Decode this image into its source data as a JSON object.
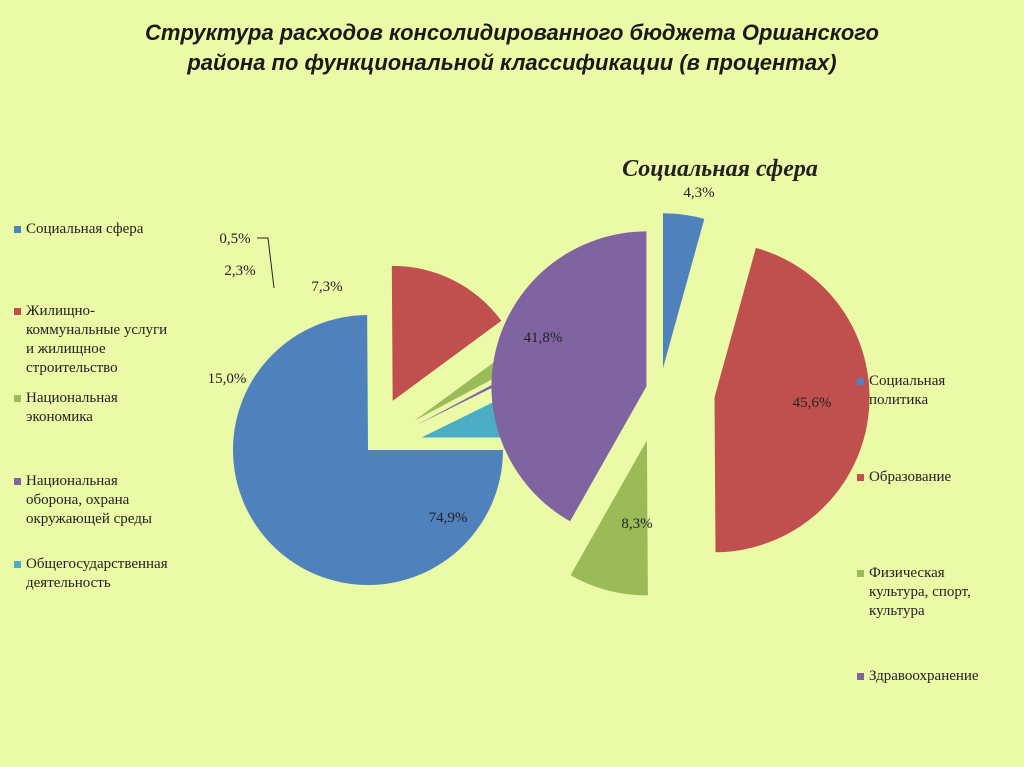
{
  "title": {
    "line1": "Структура расходов консолидированного бюджета  Оршанского",
    "line2": "района  по функциональной классификации (в процентах)"
  },
  "chart_data": [
    {
      "type": "pie",
      "title": "",
      "labels": [
        "Социальная сфера",
        "Жилищно-коммунальные услуги и жилищное строительство",
        "Национальная экономика",
        "Национальная оборона, охрана окружающей среды",
        "Общегосударственная деятельность"
      ],
      "values": [
        74.9,
        15.0,
        2.3,
        0.5,
        7.3
      ],
      "value_labels": [
        "74,9%",
        "15,0%",
        "2,3%",
        "0,5%",
        "7,3%"
      ],
      "colors": [
        "#4F81BD",
        "#C0504D",
        "#9BBB59",
        "#8064A2",
        "#4BACC6"
      ],
      "legend_position": "left"
    },
    {
      "type": "pie",
      "title": "Социальная сфера",
      "labels": [
        "Социальная политика",
        "Образование",
        "Физическая культура, спорт, культура",
        "Здравоохранение"
      ],
      "values": [
        4.3,
        45.6,
        8.3,
        41.8
      ],
      "value_labels": [
        "4,3%",
        "45,6%",
        "8,3%",
        "41,8%"
      ],
      "colors": [
        "#4F81BD",
        "#C0504D",
        "#9BBB59",
        "#8064A2"
      ],
      "legend_position": "right"
    }
  ],
  "legend_left": [
    {
      "lines": [
        "Социальная сфера"
      ],
      "color": "#4F81BD"
    },
    {
      "lines": [
        "Жилищно-",
        "коммунальные услуги",
        "и жилищное",
        "строительство"
      ],
      "color": "#C0504D"
    },
    {
      "lines": [
        "Национальная",
        "экономика"
      ],
      "color": "#9BBB59"
    },
    {
      "lines": [
        "Национальная",
        "оборона, охрана",
        "окружающей среды"
      ],
      "color": "#8064A2"
    },
    {
      "lines": [
        "Общегосударственная",
        "деятельность"
      ],
      "color": "#4BACC6"
    }
  ],
  "legend_right": [
    {
      "lines": [
        "Социальная",
        "политика"
      ],
      "color": "#4F81BD"
    },
    {
      "lines": [
        "Образование"
      ],
      "color": "#C0504D"
    },
    {
      "lines": [
        "Физическая",
        "культура, спорт,",
        "культура"
      ],
      "color": "#9BBB59"
    },
    {
      "lines": [
        "Здравоохранение"
      ],
      "color": "#8064A2"
    }
  ]
}
